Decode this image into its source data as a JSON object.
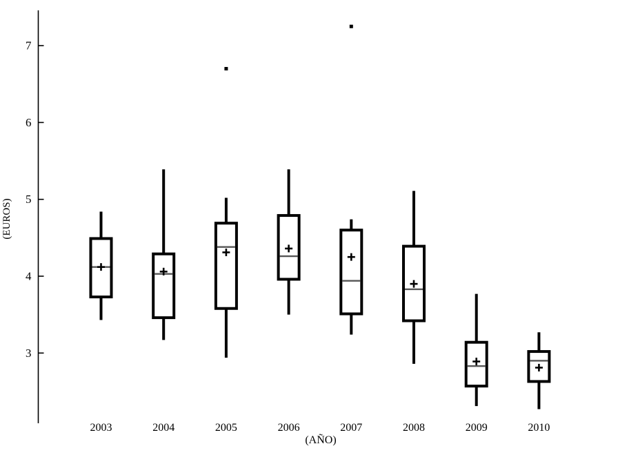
{
  "figure": {
    "background": "#ffffff",
    "line_color": "#000000",
    "median_color": "#555555",
    "text_color": "#000000"
  },
  "chart_data": {
    "type": "boxplot",
    "title": "",
    "xlabel": "(AÑO)",
    "ylabel": "(EUROS)",
    "categories": [
      "2003",
      "2004",
      "2005",
      "2006",
      "2007",
      "2008",
      "2009",
      "2010"
    ],
    "y_ticks": [
      3,
      4,
      5,
      6,
      7
    ],
    "ylim": [
      2.09,
      7.46
    ],
    "grid": false,
    "legend": null,
    "series": [
      {
        "category": "2003",
        "whisker_low": 3.43,
        "q1": 3.73,
        "median": 4.12,
        "q3": 4.49,
        "whisker_high": 4.84,
        "mean": 4.12,
        "outliers": []
      },
      {
        "category": "2004",
        "whisker_low": 3.17,
        "q1": 3.46,
        "median": 4.03,
        "q3": 4.29,
        "whisker_high": 5.39,
        "mean": 4.06,
        "outliers": []
      },
      {
        "category": "2005",
        "whisker_low": 2.94,
        "q1": 3.58,
        "median": 4.38,
        "q3": 4.69,
        "whisker_high": 5.02,
        "mean": 4.31,
        "outliers": [
          6.7
        ]
      },
      {
        "category": "2006",
        "whisker_low": 3.5,
        "q1": 3.96,
        "median": 4.26,
        "q3": 4.79,
        "whisker_high": 5.39,
        "mean": 4.36,
        "outliers": []
      },
      {
        "category": "2007",
        "whisker_low": 3.24,
        "q1": 3.51,
        "median": 3.94,
        "q3": 4.6,
        "whisker_high": 4.74,
        "mean": 4.25,
        "outliers": [
          7.25
        ]
      },
      {
        "category": "2008",
        "whisker_low": 2.86,
        "q1": 3.42,
        "median": 3.83,
        "q3": 4.39,
        "whisker_high": 5.11,
        "mean": 3.9,
        "outliers": []
      },
      {
        "category": "2009",
        "whisker_low": 2.31,
        "q1": 2.57,
        "median": 2.83,
        "q3": 3.14,
        "whisker_high": 3.77,
        "mean": 2.89,
        "outliers": []
      },
      {
        "category": "2010",
        "whisker_low": 2.27,
        "q1": 2.63,
        "median": 2.9,
        "q3": 3.02,
        "whisker_high": 3.27,
        "mean": 2.81,
        "outliers": []
      }
    ]
  }
}
